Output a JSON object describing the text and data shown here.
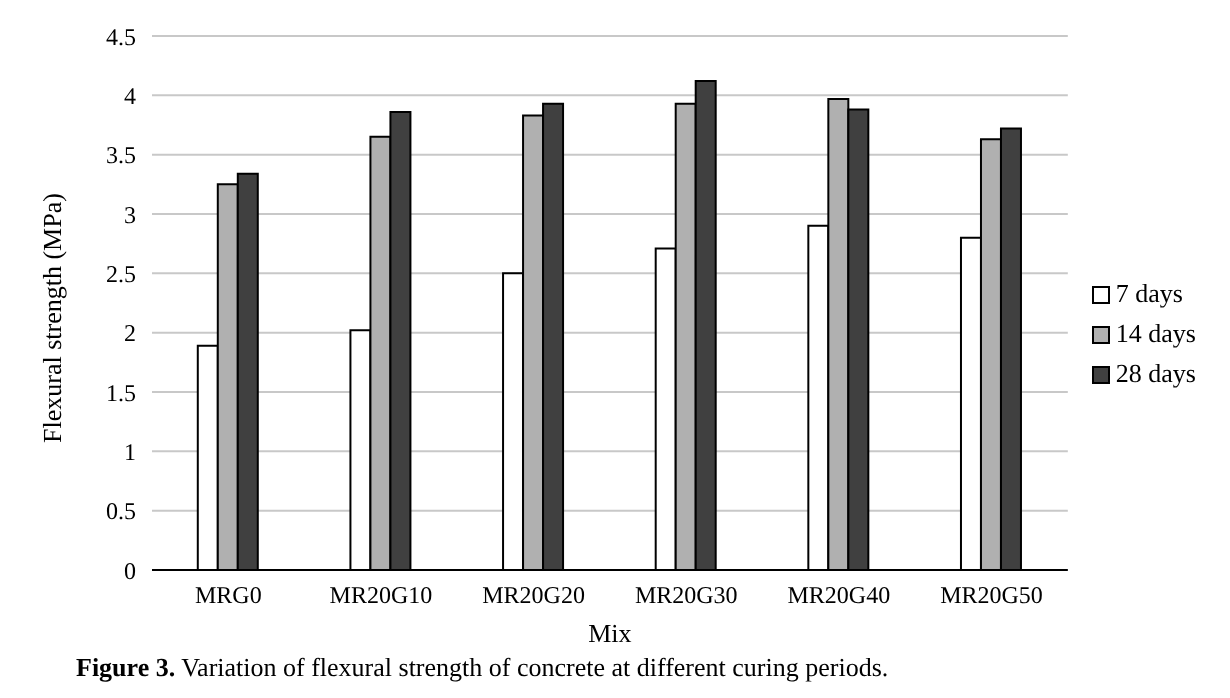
{
  "chart_data": {
    "type": "bar",
    "xlabel": "Mix",
    "ylabel": "Flexural strength (MPa)",
    "categories": [
      "MRG0",
      "MR20G10",
      "MR20G20",
      "MR20G30",
      "MR20G40",
      "MR20G50"
    ],
    "series": [
      {
        "name": "7 days",
        "color": "#ffffff",
        "values": [
          1.89,
          2.02,
          2.5,
          2.71,
          2.9,
          2.8
        ]
      },
      {
        "name": "14 days",
        "color": "#b0b0b0",
        "values": [
          3.25,
          3.65,
          3.83,
          3.93,
          3.97,
          3.63
        ]
      },
      {
        "name": "28 days",
        "color": "#404040",
        "values": [
          3.34,
          3.86,
          3.93,
          4.12,
          3.88,
          3.72
        ]
      }
    ],
    "ylim": [
      0,
      4.5
    ],
    "yticks": [
      0,
      0.5,
      1,
      1.5,
      2,
      2.5,
      3,
      3.5,
      4,
      4.5
    ],
    "grid": "y",
    "legend": "right",
    "annotations": [
      "Figure 3. Variation of flexural strength of concrete at different curing periods."
    ]
  }
}
